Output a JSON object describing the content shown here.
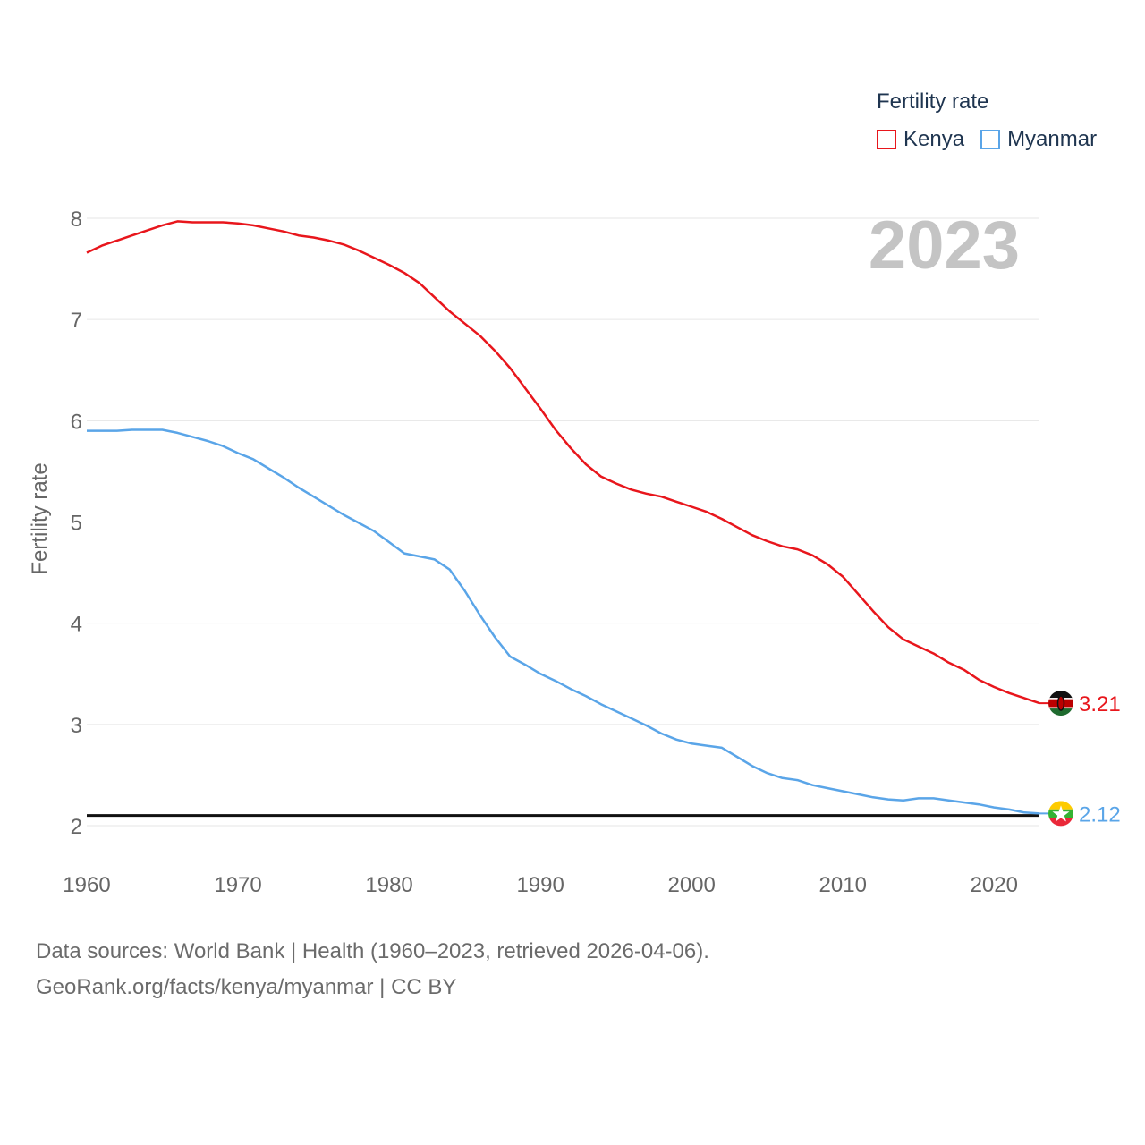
{
  "chart_data": {
    "type": "line",
    "title": "",
    "ylabel": "Fertility rate",
    "xlabel": "",
    "xlim": [
      1960,
      2023
    ],
    "ylim": [
      2,
      8
    ],
    "yticks": [
      2,
      3,
      4,
      5,
      6,
      7,
      8
    ],
    "xticks": [
      1960,
      1970,
      1980,
      1990,
      2000,
      2010,
      2020
    ],
    "grid": true,
    "year_label": "2023",
    "reference_line": 2.1,
    "x": [
      1960,
      1961,
      1962,
      1963,
      1964,
      1965,
      1966,
      1967,
      1968,
      1969,
      1970,
      1971,
      1972,
      1973,
      1974,
      1975,
      1976,
      1977,
      1978,
      1979,
      1980,
      1981,
      1982,
      1983,
      1984,
      1985,
      1986,
      1987,
      1988,
      1989,
      1990,
      1991,
      1992,
      1993,
      1994,
      1995,
      1996,
      1997,
      1998,
      1999,
      2000,
      2001,
      2002,
      2003,
      2004,
      2005,
      2006,
      2007,
      2008,
      2009,
      2010,
      2011,
      2012,
      2013,
      2014,
      2015,
      2016,
      2017,
      2018,
      2019,
      2020,
      2021,
      2022,
      2023
    ],
    "series": [
      {
        "name": "Kenya",
        "color": "#e8161c",
        "end_label": "3.21",
        "values": [
          7.66,
          7.73,
          7.78,
          7.83,
          7.88,
          7.93,
          7.97,
          7.96,
          7.96,
          7.96,
          7.95,
          7.93,
          7.9,
          7.87,
          7.83,
          7.81,
          7.78,
          7.74,
          7.68,
          7.61,
          7.54,
          7.46,
          7.36,
          7.22,
          7.08,
          6.96,
          6.84,
          6.69,
          6.52,
          6.32,
          6.12,
          5.91,
          5.73,
          5.57,
          5.45,
          5.38,
          5.32,
          5.28,
          5.25,
          5.2,
          5.15,
          5.1,
          5.03,
          4.95,
          4.87,
          4.81,
          4.76,
          4.73,
          4.67,
          4.58,
          4.46,
          4.29,
          4.12,
          3.96,
          3.84,
          3.77,
          3.7,
          3.61,
          3.54,
          3.44,
          3.37,
          3.31,
          3.26,
          3.21
        ]
      },
      {
        "name": "Myanmar",
        "color": "#5aa5e8",
        "end_label": "2.12",
        "values": [
          5.9,
          5.9,
          5.9,
          5.91,
          5.91,
          5.91,
          5.88,
          5.84,
          5.8,
          5.75,
          5.68,
          5.62,
          5.53,
          5.44,
          5.34,
          5.25,
          5.16,
          5.07,
          4.99,
          4.91,
          4.8,
          4.69,
          4.66,
          4.63,
          4.53,
          4.32,
          4.08,
          3.86,
          3.67,
          3.59,
          3.5,
          3.43,
          3.35,
          3.28,
          3.2,
          3.13,
          3.06,
          2.99,
          2.91,
          2.85,
          2.81,
          2.79,
          2.77,
          2.68,
          2.59,
          2.52,
          2.47,
          2.45,
          2.4,
          2.37,
          2.34,
          2.31,
          2.28,
          2.26,
          2.25,
          2.27,
          2.27,
          2.25,
          2.23,
          2.21,
          2.18,
          2.16,
          2.13,
          2.12
        ]
      }
    ]
  },
  "legend": {
    "title": "Fertility rate",
    "items": [
      {
        "label": "Kenya",
        "color": "#e8161c"
      },
      {
        "label": "Myanmar",
        "color": "#5aa5e8"
      }
    ]
  },
  "sources": {
    "line1": "Data sources: World Bank | Health (1960–2023, retrieved 2026-04-06).",
    "line2": "GeoRank.org/facts/kenya/myanmar | CC BY"
  }
}
